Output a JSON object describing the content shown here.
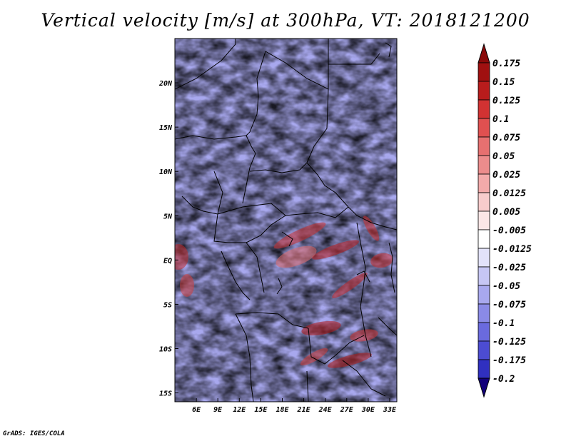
{
  "title": "Vertical velocity [m/s] at 300hPa, VT: 2018121200",
  "credit": "GrADS: IGES/COLA",
  "map": {
    "lon_range": [
      3,
      34
    ],
    "lat_range": [
      -16,
      25
    ],
    "lon_ticks": [
      {
        "value": 6,
        "label": "6E"
      },
      {
        "value": 9,
        "label": "9E"
      },
      {
        "value": 12,
        "label": "12E"
      },
      {
        "value": 15,
        "label": "15E"
      },
      {
        "value": 18,
        "label": "18E"
      },
      {
        "value": 21,
        "label": "21E"
      },
      {
        "value": 24,
        "label": "24E"
      },
      {
        "value": 27,
        "label": "27E"
      },
      {
        "value": 30,
        "label": "30E"
      },
      {
        "value": 33,
        "label": "33E"
      }
    ],
    "lat_ticks": [
      {
        "value": 20,
        "label": "20N"
      },
      {
        "value": 15,
        "label": "15N"
      },
      {
        "value": 10,
        "label": "10N"
      },
      {
        "value": 5,
        "label": "5N"
      },
      {
        "value": 0,
        "label": "EQ"
      },
      {
        "value": -5,
        "label": "5S"
      },
      {
        "value": -10,
        "label": "10S"
      },
      {
        "value": -15,
        "label": "15S"
      }
    ]
  },
  "colorbar": {
    "levels": [
      {
        "label": "0.175",
        "color": "#a01010"
      },
      {
        "label": "0.15",
        "color": "#b81c1c"
      },
      {
        "label": "0.125",
        "color": "#d23232"
      },
      {
        "label": "0.1",
        "color": "#e05050"
      },
      {
        "label": "0.075",
        "color": "#e67070"
      },
      {
        "label": "0.05",
        "color": "#ec8c8c"
      },
      {
        "label": "0.025",
        "color": "#f3aaaa"
      },
      {
        "label": "0.0125",
        "color": "#f8cccc"
      },
      {
        "label": "0.005",
        "color": "#fbe6e6"
      },
      {
        "label": "-0.005",
        "color": "#ffffff"
      },
      {
        "label": "-0.0125",
        "color": "#e2e2fa"
      },
      {
        "label": "-0.025",
        "color": "#c6c6f4"
      },
      {
        "label": "-0.05",
        "color": "#a8a8ee"
      },
      {
        "label": "-0.075",
        "color": "#8a8ae6"
      },
      {
        "label": "-0.1",
        "color": "#6a6ade"
      },
      {
        "label": "-0.125",
        "color": "#4c4cd2"
      },
      {
        "label": "-0.175",
        "color": "#3030c0"
      },
      {
        "label": "-0.2",
        "color": "#1a1aa8"
      }
    ],
    "top_arrow_color": "#8a0a0a",
    "bottom_arrow_color": "#12007a"
  }
}
